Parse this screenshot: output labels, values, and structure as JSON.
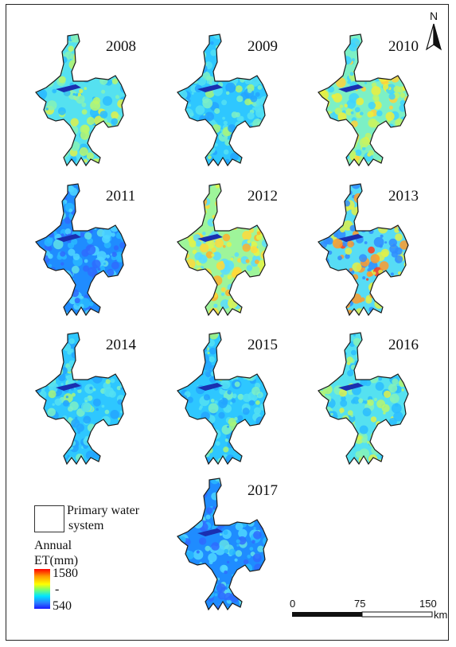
{
  "maps": [
    {
      "year": "2008",
      "fill": "lowmid"
    },
    {
      "year": "2009",
      "fill": "low"
    },
    {
      "year": "2010",
      "fill": "mid"
    },
    {
      "year": "2011",
      "fill": "verylow"
    },
    {
      "year": "2012",
      "fill": "high"
    },
    {
      "year": "2013",
      "fill": "veryhigh"
    },
    {
      "year": "2014",
      "fill": "low"
    },
    {
      "year": "2015",
      "fill": "low"
    },
    {
      "year": "2016",
      "fill": "lowmid"
    },
    {
      "year": "2017",
      "fill": "verylow"
    }
  ],
  "north_arrow": {
    "label": "N",
    "icon": "north-arrow-icon"
  },
  "legend": {
    "water_line1": "Primary water",
    "water_line2": "system",
    "et_line1": "Annual",
    "et_line2": "ET(mm)",
    "max": "1580",
    "mid": "-",
    "min": "540",
    "ramp_colors": [
      "#ff0000",
      "#ff9a00",
      "#ffff00",
      "#7cff6c",
      "#00e5ff",
      "#2a7fff",
      "#1a1aff"
    ]
  },
  "scale": {
    "tick0": "0",
    "tick1": "75",
    "tick2": "150",
    "unit": "km"
  }
}
